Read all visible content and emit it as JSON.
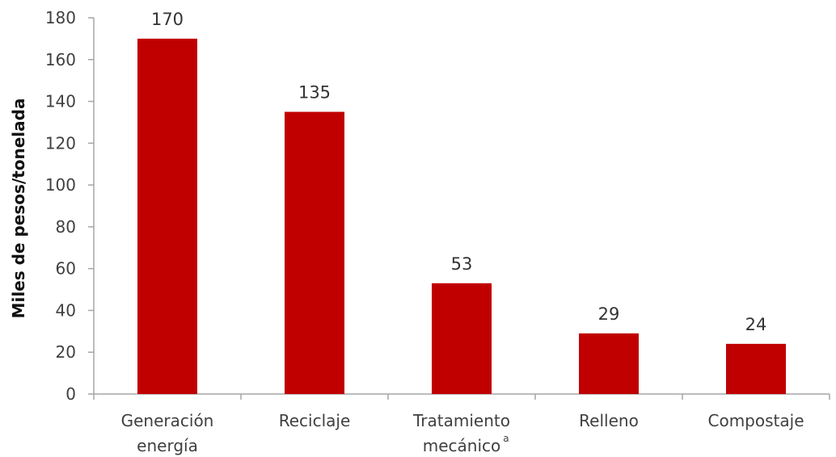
{
  "chart_data": {
    "type": "bar",
    "categories": [
      [
        "Generación",
        "energía"
      ],
      [
        "Reciclaje"
      ],
      [
        "Tratamiento",
        "mecánico"
      ],
      [
        "Relleno"
      ],
      [
        "Compostaje"
      ]
    ],
    "category_superscripts": [
      "",
      "",
      "a",
      "",
      ""
    ],
    "values": [
      170,
      135,
      53,
      29,
      24
    ],
    "data_labels": [
      "170",
      "135",
      "53",
      "29",
      "24"
    ],
    "title": "",
    "xlabel": "",
    "ylabel": "Miles de pesos/tonelada",
    "ylim": [
      0,
      180
    ],
    "yticks": [
      0,
      20,
      40,
      60,
      80,
      100,
      120,
      140,
      160,
      180
    ],
    "grid": false,
    "legend": "none",
    "bar_color": "#C00000",
    "axis_color": "#A6A6A6"
  }
}
